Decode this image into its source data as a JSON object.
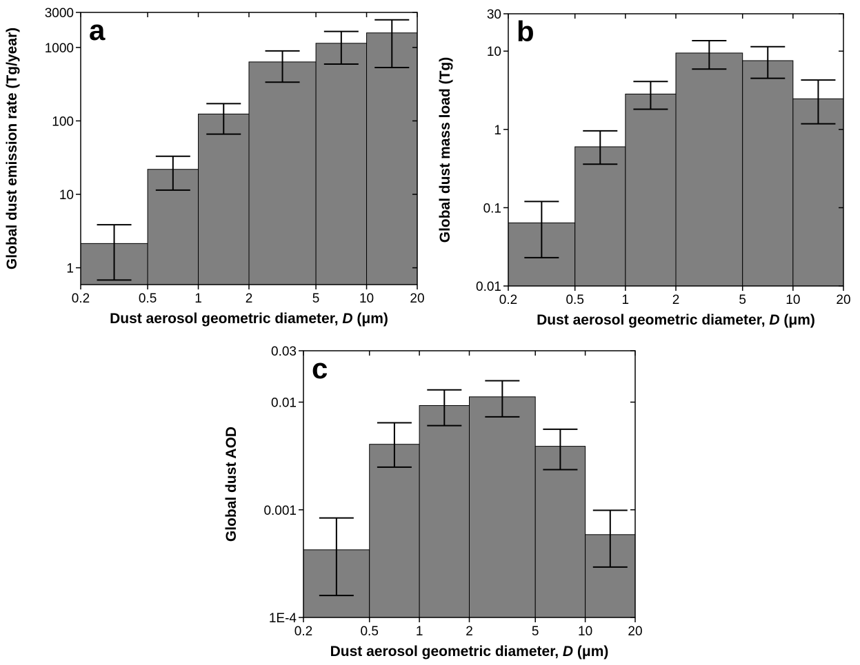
{
  "chart_data": [
    {
      "type": "histogram",
      "panel_label": "a",
      "ylabel": "Global dust emission rate (Tg/year)",
      "xlabel": [
        "Dust aerosol geometric diameter, ",
        "D",
        " (μm)"
      ],
      "bins": [
        0.2,
        0.5,
        1,
        2,
        5,
        10,
        20
      ],
      "values": [
        2.14,
        21.9,
        124,
        635,
        1140,
        1578
      ],
      "lower": [
        0.68,
        11.4,
        66,
        337,
        594,
        532
      ],
      "upper": [
        3.85,
        33,
        172,
        897,
        1650,
        2380
      ],
      "color": "#808080",
      "xscale": "log",
      "yscale": "log",
      "xlim": [
        0.2,
        20
      ],
      "xticks": [
        0.2,
        0.5,
        1,
        2,
        5,
        10,
        20
      ],
      "ylim": [
        0.59,
        3000
      ],
      "yticks": [
        1,
        10,
        100,
        1000,
        3000
      ]
    },
    {
      "type": "histogram",
      "panel_label": "b",
      "ylabel": "Global dust mass load (Tg)",
      "xlabel": [
        "Dust aerosol geometric diameter, ",
        "D",
        " (μm)"
      ],
      "bins": [
        0.2,
        0.5,
        1,
        2,
        5,
        10,
        20
      ],
      "values": [
        0.064,
        0.6,
        2.83,
        9.46,
        7.56,
        2.46
      ],
      "lower": [
        0.023,
        0.36,
        1.81,
        5.9,
        4.5,
        1.18
      ],
      "upper": [
        0.12,
        0.96,
        4.1,
        13.6,
        11.4,
        4.27
      ],
      "color": "#808080",
      "xscale": "log",
      "yscale": "log",
      "xlim": [
        0.2,
        20
      ],
      "xticks": [
        0.2,
        0.5,
        1,
        2,
        5,
        10,
        20
      ],
      "ylim": [
        0.01,
        30
      ],
      "yticks": [
        0.01,
        0.1,
        1,
        10,
        30
      ]
    },
    {
      "type": "histogram",
      "panel_label": "c",
      "ylabel": "Global dust AOD",
      "xlabel": [
        "Dust aerosol geometric diameter, ",
        "D",
        " (μm)"
      ],
      "bins": [
        0.2,
        0.5,
        1,
        2,
        5,
        10,
        20
      ],
      "values": [
        0.000425,
        0.00406,
        0.0093,
        0.0112,
        0.00389,
        0.000588
      ],
      "lower": [
        0.00016,
        0.00249,
        0.00605,
        0.0073,
        0.00236,
        0.000294
      ],
      "upper": [
        0.00084,
        0.00643,
        0.013,
        0.0158,
        0.0056,
        0.00099
      ],
      "color": "#808080",
      "xscale": "log",
      "yscale": "log",
      "xlim": [
        0.2,
        20
      ],
      "xticks": [
        0.2,
        0.5,
        1,
        2,
        5,
        10,
        20
      ],
      "ylim": [
        0.0001,
        0.03
      ],
      "yticks": [
        {
          "value": 0.0001,
          "label": "1E-4"
        },
        0.001,
        0.01,
        0.03
      ]
    }
  ]
}
